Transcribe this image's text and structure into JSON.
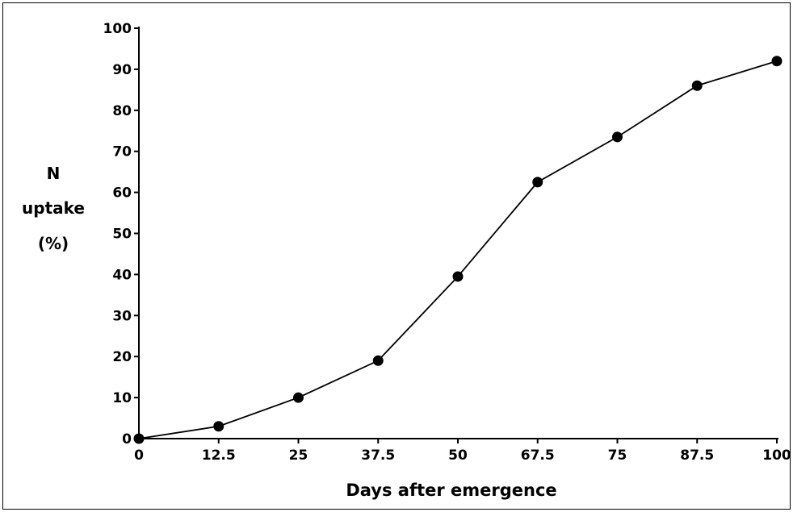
{
  "chart_data": {
    "type": "line",
    "title": "",
    "xlabel": "Days after emergence",
    "ylabel_lines": [
      "N",
      "uptake",
      "(%)"
    ],
    "x_ticks": [
      "0",
      "12.5",
      "25",
      "37.5",
      "50",
      "67.5",
      "75",
      "87.5",
      "100"
    ],
    "y_ticks": [
      "0",
      "10",
      "20",
      "30",
      "40",
      "50",
      "60",
      "70",
      "80",
      "90",
      "100"
    ],
    "ylim": [
      0,
      100
    ],
    "grid": false,
    "series": [
      {
        "x": [
          "0",
          "12.5",
          "25",
          "37.5",
          "50",
          "67.5",
          "75",
          "87.5",
          "100"
        ],
        "y": [
          0,
          3,
          10,
          19,
          39.5,
          62.5,
          73.5,
          86,
          92
        ]
      }
    ]
  },
  "colors": {
    "line": "#000000",
    "marker": "#000000",
    "background": "#ffffff"
  }
}
